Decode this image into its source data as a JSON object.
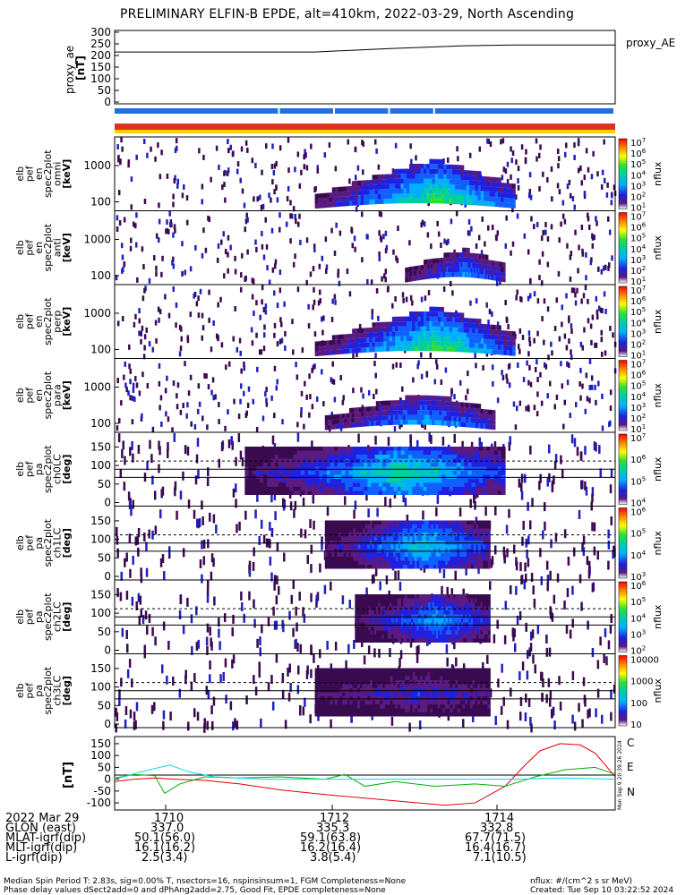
{
  "title": "PRELIMINARY ELFIN-B EPDE, alt=410km, 2022-03-29, North Ascending",
  "proxy_ae": {
    "ylabel": "proxy_ae\n[nT]",
    "legend": "proxy_AE",
    "yticks": [
      "300",
      "250",
      "200",
      "150",
      "100",
      "50",
      "0"
    ],
    "series": [
      {
        "t": 0.0,
        "v": 215
      },
      {
        "t": 0.4,
        "v": 215
      },
      {
        "t": 0.55,
        "v": 230
      },
      {
        "t": 0.7,
        "v": 242
      },
      {
        "t": 0.8,
        "v": 245
      },
      {
        "t": 1.0,
        "v": 245
      }
    ]
  },
  "status_bars": {
    "row1_color": "#1e6fe0",
    "row1_gaps": [
      0.33,
      0.44,
      0.55,
      0.64
    ],
    "row2_color": "#e03020",
    "row3_color": "#ffd000"
  },
  "spectra_panels": [
    {
      "ylabel": [
        "elb",
        "pef",
        "en",
        "spec2plot",
        "omni",
        "[keV]"
      ],
      "yticks": [
        "1000",
        "100"
      ],
      "cbar_ticks": [
        "10^7",
        "10^6",
        "10^5",
        "10^4",
        "10^3",
        "10^2",
        "10^1"
      ],
      "cbar_label": "nflux",
      "band": [
        0.4,
        0.8
      ],
      "level": 0.9
    },
    {
      "ylabel": [
        "elb",
        "pef",
        "en",
        "spec2plot",
        "anti",
        "[keV]"
      ],
      "yticks": [
        "1000",
        "100"
      ],
      "cbar_ticks": [
        "10^7",
        "10^6",
        "10^5",
        "10^4",
        "10^3",
        "10^2",
        "10^1"
      ],
      "cbar_label": "nflux",
      "band": [
        0.58,
        0.78
      ],
      "level": 0.45
    },
    {
      "ylabel": [
        "elb",
        "pef",
        "en",
        "spec2plot",
        "perp",
        "[keV]"
      ],
      "yticks": [
        "1000",
        "100"
      ],
      "cbar_ticks": [
        "10^7",
        "10^6",
        "10^5",
        "10^4",
        "10^3",
        "10^2",
        "10^1"
      ],
      "cbar_label": "nflux",
      "band": [
        0.4,
        0.8
      ],
      "level": 0.9
    },
    {
      "ylabel": [
        "elb",
        "pef",
        "en",
        "spec2plot",
        "para",
        "[keV]"
      ],
      "yticks": [
        "1000",
        "100"
      ],
      "cbar_ticks": [
        "10^7",
        "10^6",
        "10^5",
        "10^4",
        "10^3",
        "10^2",
        "10^1"
      ],
      "cbar_label": "nflux",
      "band": [
        0.42,
        0.76
      ],
      "level": 0.55
    }
  ],
  "pitch_panels": [
    {
      "ylabel": [
        "elb",
        "pef",
        "pa",
        "spec2plot",
        "ch0LC",
        "[deg]"
      ],
      "yticks": [
        "150",
        "100",
        "50",
        "0"
      ],
      "cbar_ticks": [
        "10^7",
        "10^6",
        "10^5",
        "10^4"
      ],
      "cbar_label": "nflux",
      "band": [
        0.26,
        0.78
      ],
      "level": 0.8
    },
    {
      "ylabel": [
        "elb",
        "pef",
        "pa",
        "spec2plot",
        "ch1LC",
        "[deg]"
      ],
      "yticks": [
        "150",
        "100",
        "50",
        "0"
      ],
      "cbar_ticks": [
        "10^6",
        "10^5",
        "10^4",
        "10^3"
      ],
      "cbar_label": "nflux",
      "band": [
        0.42,
        0.75
      ],
      "level": 0.7
    },
    {
      "ylabel": [
        "elb",
        "pef",
        "pa",
        "spec2plot",
        "ch2LC",
        "[deg]"
      ],
      "yticks": [
        "150",
        "100",
        "50",
        "0"
      ],
      "cbar_ticks": [
        "10^6",
        "10^5",
        "10^4",
        "10^3",
        "10^2"
      ],
      "cbar_label": "nflux",
      "band": [
        0.48,
        0.75
      ],
      "level": 0.55
    },
    {
      "ylabel": [
        "elb",
        "pef",
        "pa",
        "spec2plot",
        "ch3LC",
        "[deg]"
      ],
      "yticks": [
        "150",
        "100",
        "50",
        "0"
      ],
      "cbar_ticks": [
        "10000",
        "1000",
        "100",
        "10"
      ],
      "cbar_label": "nflux",
      "band": [
        0.4,
        0.75
      ],
      "level": 0.25
    }
  ],
  "dB_panel": {
    "ylabel": "[nT]",
    "yticks": [
      "150",
      "100",
      "50",
      "0",
      "-50",
      "-100"
    ],
    "ylim": [
      -130,
      180
    ],
    "legend": [
      {
        "label": "C",
        "color": "#00d8e8"
      },
      {
        "label": "E",
        "color": "#e00000"
      },
      {
        "label": "N",
        "color": "#00b000"
      }
    ],
    "series": {
      "E": [
        [
          0.0,
          -10
        ],
        [
          0.04,
          0
        ],
        [
          0.08,
          5
        ],
        [
          0.12,
          0
        ],
        [
          0.18,
          -5
        ],
        [
          0.25,
          -20
        ],
        [
          0.33,
          -45
        ],
        [
          0.42,
          -65
        ],
        [
          0.5,
          -80
        ],
        [
          0.58,
          -95
        ],
        [
          0.66,
          -110
        ],
        [
          0.72,
          -100
        ],
        [
          0.78,
          -30
        ],
        [
          0.82,
          60
        ],
        [
          0.85,
          120
        ],
        [
          0.89,
          150
        ],
        [
          0.93,
          145
        ],
        [
          0.96,
          110
        ],
        [
          1.0,
          10
        ]
      ],
      "N": [
        [
          0.0,
          5
        ],
        [
          0.04,
          20
        ],
        [
          0.08,
          15
        ],
        [
          0.1,
          -60
        ],
        [
          0.13,
          -20
        ],
        [
          0.18,
          10
        ],
        [
          0.25,
          5
        ],
        [
          0.33,
          10
        ],
        [
          0.42,
          0
        ],
        [
          0.46,
          20
        ],
        [
          0.5,
          -30
        ],
        [
          0.56,
          -10
        ],
        [
          0.64,
          -30
        ],
        [
          0.72,
          -20
        ],
        [
          0.78,
          -30
        ],
        [
          0.84,
          10
        ],
        [
          0.9,
          40
        ],
        [
          0.96,
          50
        ],
        [
          1.0,
          20
        ]
      ],
      "C": [
        [
          0.0,
          0
        ],
        [
          0.05,
          30
        ],
        [
          0.11,
          60
        ],
        [
          0.15,
          30
        ],
        [
          0.2,
          10
        ],
        [
          0.3,
          0
        ],
        [
          0.4,
          0
        ],
        [
          0.5,
          0
        ],
        [
          0.6,
          0
        ],
        [
          0.7,
          0
        ],
        [
          0.8,
          0
        ],
        [
          0.9,
          5
        ],
        [
          1.0,
          0
        ]
      ]
    }
  },
  "orbit_table": {
    "rows": [
      [
        "2022 Mar 29",
        "1710",
        "1712",
        "1714"
      ],
      [
        "GLON (east)",
        "337.0",
        "335.3",
        "332.8"
      ],
      [
        "MLAT-igrf(dip)",
        "50.1(56.0)",
        "59.1(63.8)",
        "67.7(71.5)"
      ],
      [
        "MLT-igrf(dip)",
        "16.1(16.2)",
        "16.2(16.4)",
        "16.4(16.7)"
      ],
      [
        "L-igrf(dip)",
        "2.5(3.4)",
        "3.8(5.4)",
        "7.1(10.5)"
      ]
    ]
  },
  "footer": {
    "line1": "Median Spin Period T: 2.83s, sig=0.00% T, nsectors=16, nspinsinsum=1, FGM Completeness=None",
    "line1_right": "nflux: #/(cm^2 s sr MeV)",
    "line2": "Phase delay values dSect2add=0 and dPhAng2add=2.75, Good Fit, EPDE completeness=None",
    "line2_right": "Created: Tue Sep 10 03:22:52 2024",
    "side_stamp": "Mon Sep 9 20:39:26 2024"
  }
}
